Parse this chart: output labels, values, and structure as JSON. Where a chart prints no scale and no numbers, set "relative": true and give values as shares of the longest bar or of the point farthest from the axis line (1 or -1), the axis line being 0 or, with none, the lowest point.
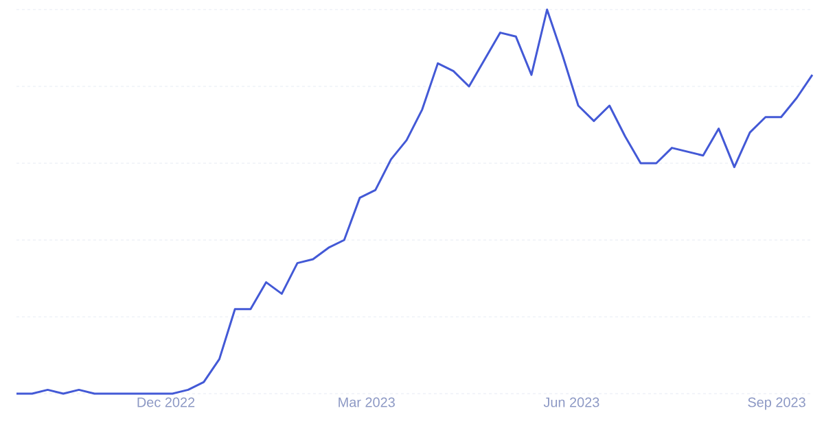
{
  "chart_data": {
    "type": "line",
    "relative": true,
    "grid": "y",
    "marker": "none",
    "line_style": "solid",
    "color": "#4359d6",
    "x": [
      "2022-09-25",
      "2022-10-02",
      "2022-10-09",
      "2022-10-16",
      "2022-10-23",
      "2022-10-30",
      "2022-11-06",
      "2022-11-13",
      "2022-11-20",
      "2022-11-27",
      "2022-12-04",
      "2022-12-11",
      "2022-12-18",
      "2022-12-25",
      "2023-01-01",
      "2023-01-08",
      "2023-01-15",
      "2023-01-22",
      "2023-01-29",
      "2023-02-05",
      "2023-02-12",
      "2023-02-19",
      "2023-02-26",
      "2023-03-05",
      "2023-03-12",
      "2023-03-19",
      "2023-03-26",
      "2023-04-02",
      "2023-04-09",
      "2023-04-16",
      "2023-04-23",
      "2023-04-30",
      "2023-05-07",
      "2023-05-14",
      "2023-05-21",
      "2023-05-28",
      "2023-06-04",
      "2023-06-11",
      "2023-06-18",
      "2023-06-25",
      "2023-07-02",
      "2023-07-09",
      "2023-07-16",
      "2023-07-23",
      "2023-07-30",
      "2023-08-06",
      "2023-08-13",
      "2023-08-20",
      "2023-08-27",
      "2023-09-03",
      "2023-09-10",
      "2023-09-17"
    ],
    "values": [
      0,
      0,
      0.01,
      0,
      0.01,
      0,
      0,
      0,
      0,
      0,
      0,
      0.01,
      0.03,
      0.09,
      0.22,
      0.22,
      0.29,
      0.26,
      0.34,
      0.35,
      0.38,
      0.4,
      0.51,
      0.53,
      0.61,
      0.66,
      0.74,
      0.86,
      0.84,
      0.8,
      0.87,
      0.94,
      0.93,
      0.83,
      1,
      0.88,
      0.75,
      0.71,
      0.75,
      0.67,
      0.6,
      0.6,
      0.64,
      0.63,
      0.62,
      0.69,
      0.59,
      0.68,
      0.72,
      0.72,
      0.77,
      0.83
    ],
    "xlim": [
      "2022-09-25",
      "2023-09-17"
    ],
    "xticks": [
      {
        "value": "2022-12-01",
        "label": "Dec 2022"
      },
      {
        "value": "2023-03-01",
        "label": "Mar 2023"
      },
      {
        "value": "2023-06-01",
        "label": "Jun 2023"
      },
      {
        "value": "2023-09-01",
        "label": "Sep 2023"
      }
    ]
  }
}
